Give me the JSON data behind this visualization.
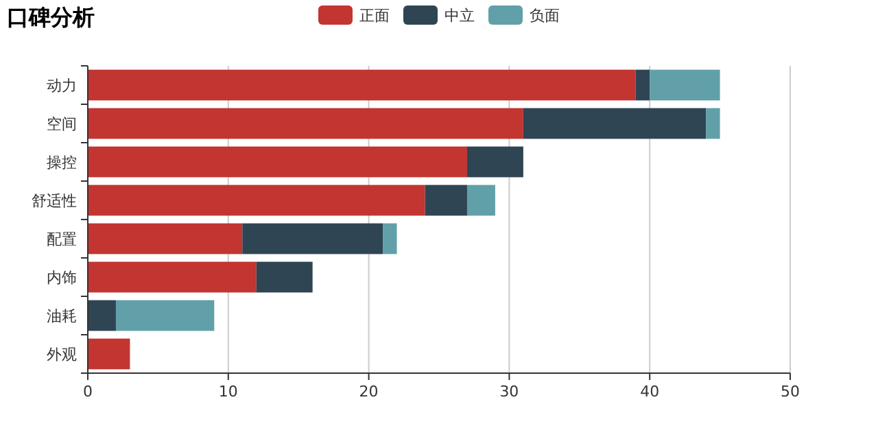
{
  "chart_data": {
    "type": "bar",
    "orientation": "horizontal",
    "stacked": true,
    "title": "口碑分析",
    "categories": [
      "动力",
      "空间",
      "操控",
      "舒适性",
      "配置",
      "内饰",
      "油耗",
      "外观"
    ],
    "series": [
      {
        "name": "正面",
        "color": "#c23531",
        "values": [
          39,
          31,
          27,
          24,
          11,
          12,
          0,
          3
        ]
      },
      {
        "name": "中立",
        "color": "#2f4554",
        "values": [
          1,
          13,
          4,
          3,
          10,
          4,
          2,
          0
        ]
      },
      {
        "name": "负面",
        "color": "#61a0a8",
        "values": [
          5,
          1,
          0,
          2,
          1,
          0,
          7,
          0
        ]
      }
    ],
    "xlim": [
      0,
      50
    ],
    "xticks": [
      0,
      10,
      20,
      30,
      40,
      50
    ],
    "grid": "x",
    "legend": "top"
  }
}
